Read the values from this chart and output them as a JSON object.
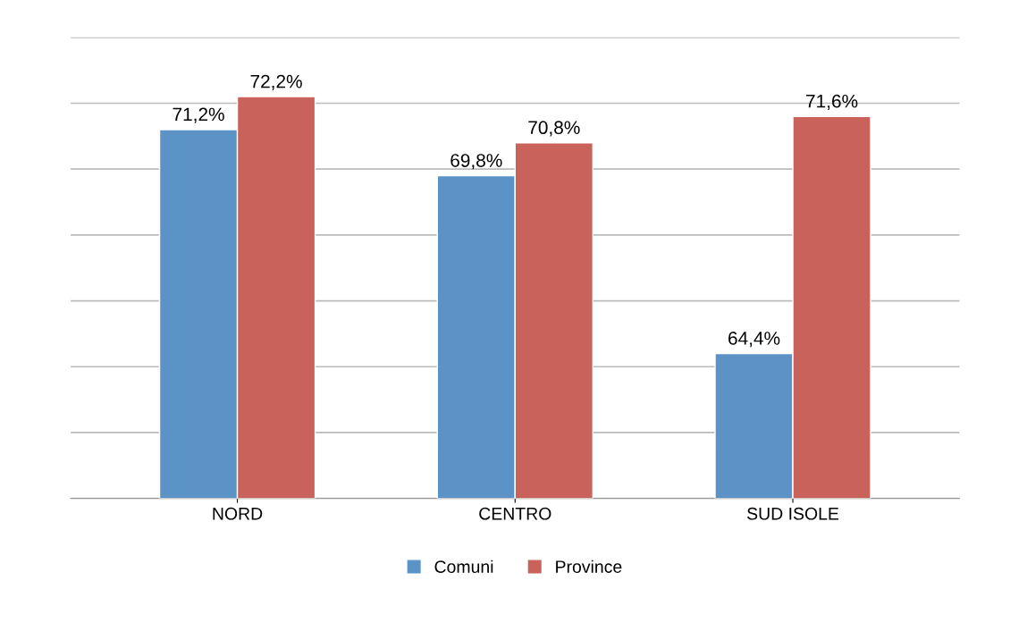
{
  "chart_data": {
    "type": "bar",
    "categories": [
      "NORD",
      "CENTRO",
      "SUD ISOLE"
    ],
    "series": [
      {
        "name": "Comuni",
        "color": "#5b93c7",
        "values": [
          71.2,
          69.8,
          64.4
        ],
        "value_labels": [
          "71,2%",
          "69,8%",
          "64,4%"
        ]
      },
      {
        "name": "Province",
        "color": "#c9625a",
        "values": [
          72.2,
          70.8,
          71.6
        ],
        "value_labels": [
          "72,2%",
          "70,8%",
          "71,6%"
        ]
      }
    ],
    "ylim": [
      60,
      74
    ],
    "yticks": [
      {
        "value": 60,
        "label": null
      },
      {
        "value": 62,
        "label": null
      },
      {
        "value": 64,
        "label": null
      },
      {
        "value": 66,
        "label": null
      },
      {
        "value": 68,
        "label": null
      },
      {
        "value": 70,
        "label": null
      },
      {
        "value": 72,
        "label": null
      },
      {
        "value": 74,
        "label": null
      }
    ],
    "tick_labels": "x",
    "grid": "y",
    "legend": "bottom"
  }
}
